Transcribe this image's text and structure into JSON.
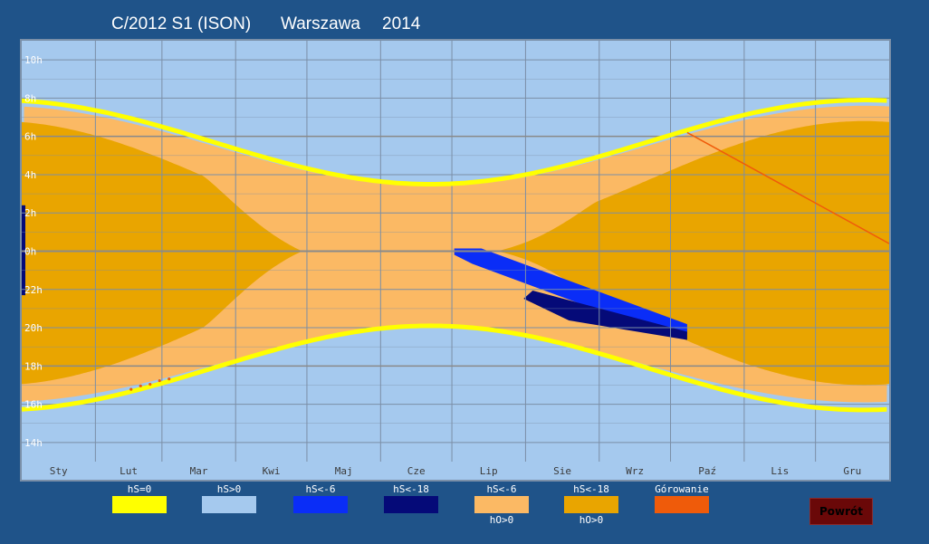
{
  "header": {
    "object": "C/2012 S1 (ISON)",
    "city": "Warszawa",
    "year": "2014"
  },
  "chart_data": {
    "type": "heatmap",
    "description_units": "x = day of year 2014 (0-365), y = local time in hours (13-24 then 0-11, centered on midnight)",
    "x_range": [
      0,
      365
    ],
    "y_range_hours": [
      13,
      35
    ],
    "months": [
      "Sty",
      "Lut",
      "Mar",
      "Kwi",
      "Maj",
      "Cze",
      "Lip",
      "Sie",
      "Wrz",
      "Paź",
      "Lis",
      "Gru"
    ],
    "y_ticks": [
      "14h",
      "16h",
      "18h",
      "20h",
      "22h",
      "0h",
      "2h",
      "4h",
      "6h",
      "8h",
      "10h"
    ],
    "zones": {
      "twilight_outer": {
        "sunset_range_h": [
          16.1,
          20.0
        ],
        "sunrise_range_h": [
          3.4,
          7.6
        ],
        "note": "hS<-6 boundary"
      },
      "night_inner": {
        "evening_start_h": [
          17.0,
          23.5
        ],
        "morning_end_h": [
          0.6,
          6.8
        ],
        "absent_days": [
          118,
          200
        ],
        "note": "hS<-18 boundary"
      },
      "yellow_line": {
        "sunset_h": [
          15.7,
          20.1
        ],
        "sunrise_h": [
          3.5,
          7.9
        ],
        "note": "hS=0"
      }
    },
    "comet_visibility": [
      {
        "label": "hS<-6",
        "from": [
          182,
          24.0
        ],
        "to": [
          280,
          19.9
        ]
      },
      {
        "label": "hS<-18",
        "from": [
          215,
          21.8
        ],
        "to": [
          280,
          19.6
        ]
      }
    ],
    "culmination_line": {
      "from_day": 280,
      "from_h": 6.2,
      "to_day": 365,
      "to_h": 0.4
    },
    "culmination_dots_day": [
      46,
      50,
      54,
      58,
      62
    ],
    "legend": [
      {
        "label": "hS=0",
        "sub": "",
        "color": "#ffff00"
      },
      {
        "label": "hS>0",
        "sub": "",
        "color": "#a5c9ee"
      },
      {
        "label": "hS<-6",
        "sub": "",
        "color": "#0a2df7"
      },
      {
        "label": "hS<-18",
        "sub": "",
        "color": "#050a78"
      },
      {
        "label": "hS<-6",
        "sub": "hO>0",
        "color": "#fbb964"
      },
      {
        "label": "hS<-18",
        "sub": "hO>0",
        "color": "#e9a500"
      },
      {
        "label": "Górowanie",
        "sub": "",
        "color": "#ef5b0a"
      }
    ],
    "colors": {
      "day_sky": "#a5c9ee",
      "twilight_band": "#fbb964",
      "night_band": "#e9a500",
      "grid": "#7b8ea6",
      "midnight_line": "#8a8a8a",
      "sun_line": "#ffff00",
      "comet_mid": "#0a2df7",
      "comet_dark": "#050a78",
      "culmination": "#ef5b0a",
      "label": "#ffffff",
      "month_label": "#3a3a3a"
    }
  },
  "footer": {
    "back_label": "Powrót"
  }
}
